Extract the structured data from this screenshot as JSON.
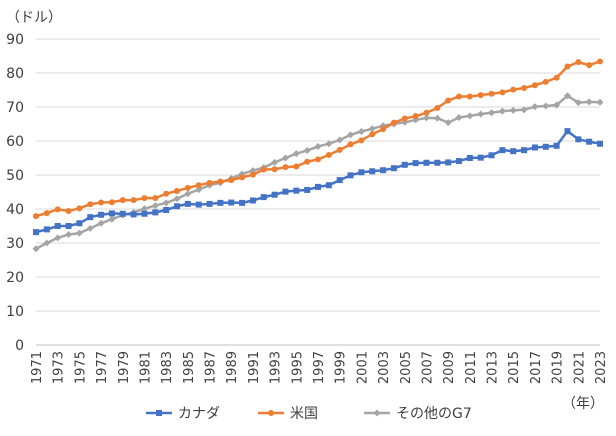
{
  "chart_data": {
    "type": "line",
    "unit_label": "（ドル）",
    "xlabel": "（年）",
    "ylim": [
      0,
      90
    ],
    "y_ticks": [
      0,
      10,
      20,
      30,
      40,
      50,
      60,
      70,
      80,
      90
    ],
    "x": [
      1971,
      1972,
      1973,
      1974,
      1975,
      1976,
      1977,
      1978,
      1979,
      1980,
      1981,
      1982,
      1983,
      1984,
      1985,
      1986,
      1987,
      1988,
      1989,
      1990,
      1991,
      1992,
      1993,
      1994,
      1995,
      1996,
      1997,
      1998,
      1999,
      2000,
      2001,
      2002,
      2003,
      2004,
      2005,
      2006,
      2007,
      2008,
      2009,
      2010,
      2011,
      2012,
      2013,
      2014,
      2015,
      2016,
      2017,
      2018,
      2019,
      2020,
      2021,
      2022,
      2023
    ],
    "x_tick_labels": [
      "1971",
      "1973",
      "1975",
      "1977",
      "1979",
      "1981",
      "1983",
      "1985",
      "1987",
      "1989",
      "1991",
      "1993",
      "1995",
      "1997",
      "1999",
      "2001",
      "2003",
      "2005",
      "2007",
      "2009",
      "2011",
      "2013",
      "2015",
      "2017",
      "2019",
      "2021",
      "2023"
    ],
    "grid": true,
    "legend_position": "bottom",
    "series": [
      {
        "name": "カナダ",
        "color": "#4472C4",
        "marker": "square",
        "values": [
          33.2,
          34,
          35,
          35,
          35.8,
          37.6,
          38.3,
          38.7,
          38.6,
          38.4,
          38.6,
          39,
          39.7,
          40.8,
          41.5,
          41.3,
          41.5,
          41.8,
          41.9,
          41.8,
          42.5,
          43.5,
          44.2,
          45.1,
          45.4,
          45.6,
          46.5,
          47,
          48.5,
          49.9,
          50.8,
          51.1,
          51.4,
          52,
          53,
          53.5,
          53.6,
          53.6,
          53.7,
          54.1,
          55,
          55.1,
          55.8,
          57.3,
          57,
          57.3,
          58.1,
          58.3,
          58.6,
          62.9,
          60.5,
          59.8,
          59.2
        ]
      },
      {
        "name": "米国",
        "color": "#ED7D31",
        "marker": "circle",
        "values": [
          37.9,
          38.8,
          39.9,
          39.4,
          40.2,
          41.4,
          41.9,
          42,
          42.6,
          42.6,
          43.2,
          43.2,
          44.5,
          45.3,
          46.2,
          47,
          47.7,
          48.1,
          48.5,
          49.3,
          50.1,
          51.6,
          51.7,
          52.3,
          52.5,
          53.9,
          54.6,
          55.9,
          57.4,
          59,
          60.2,
          62,
          63.5,
          65.4,
          66.6,
          67.3,
          68.3,
          69.7,
          71.9,
          73.1,
          73.1,
          73.5,
          73.9,
          74.3,
          75.1,
          75.6,
          76.4,
          77.4,
          78.6,
          81.9,
          83.2,
          82.3,
          83.4
        ]
      },
      {
        "name": "その他のG7",
        "color": "#A5A5A5",
        "marker": "diamond",
        "values": [
          28.3,
          30,
          31.5,
          32.5,
          32.9,
          34.3,
          35.8,
          37,
          38.2,
          39,
          40.1,
          41,
          41.8,
          43,
          44.5,
          45.7,
          47,
          47.7,
          49,
          50.3,
          51.3,
          52.2,
          53.7,
          55,
          56.3,
          57.2,
          58.4,
          59.2,
          60.3,
          61.8,
          62.8,
          63.6,
          64.5,
          65,
          65.5,
          66.2,
          66.8,
          66.7,
          65.4,
          66.9,
          67.4,
          67.9,
          68.3,
          68.8,
          69,
          69.2,
          70.1,
          70.3,
          70.6,
          73.3,
          71.3,
          71.5,
          71.4
        ]
      }
    ]
  }
}
